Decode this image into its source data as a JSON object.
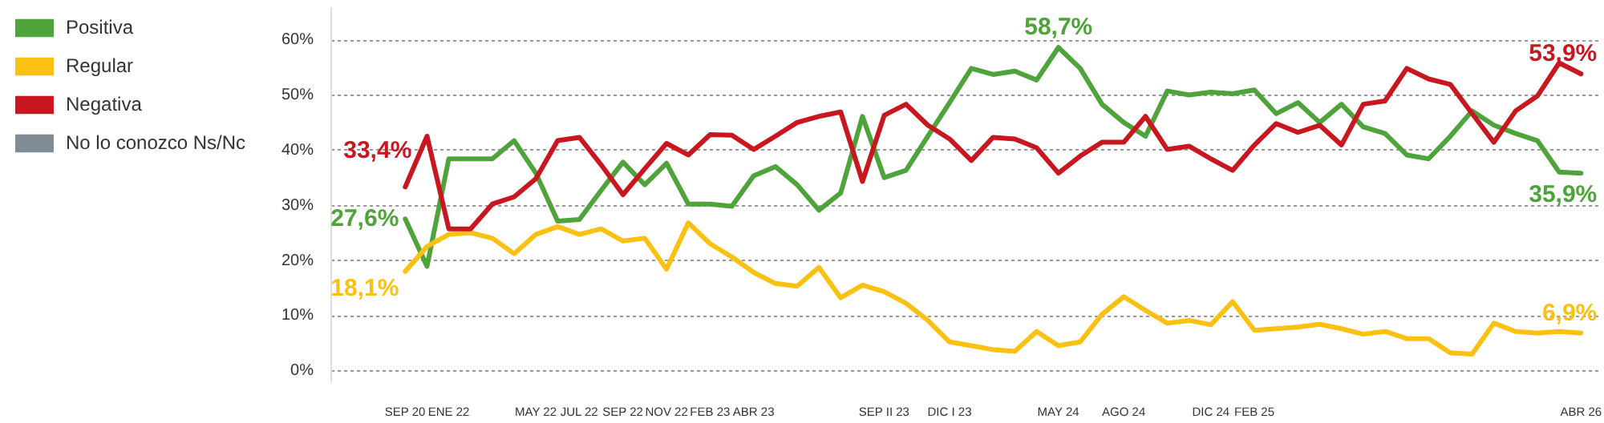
{
  "chart_data": {
    "type": "line",
    "categories": [
      "SEP 20",
      null,
      "ENE 22",
      null,
      null,
      null,
      "MAY 22",
      null,
      "JUL 22",
      null,
      "SEP 22",
      null,
      "NOV 22",
      null,
      "FEB 23",
      null,
      "ABR 23",
      null,
      null,
      null,
      null,
      null,
      "SEP II 23",
      null,
      null,
      "DIC I 23",
      null,
      null,
      null,
      null,
      "MAY 24",
      null,
      null,
      "AGO 24",
      null,
      null,
      null,
      "DIC 24",
      null,
      "FEB 25",
      null,
      null,
      null,
      null,
      null,
      null,
      null,
      null,
      null,
      null,
      null,
      null,
      null,
      null,
      "ABR 26"
    ],
    "series": [
      {
        "name": "Positiva",
        "color": "#4ea33a",
        "values": [
          27.6,
          19.0,
          38.5,
          38.5,
          38.5,
          41.8,
          35.9,
          27.2,
          27.5,
          32.8,
          37.9,
          33.8,
          37.7,
          30.3,
          30.3,
          29.9,
          35.4,
          37.1,
          33.8,
          29.2,
          32.3,
          46.2,
          35.1,
          36.4,
          42.6,
          48.7,
          54.9,
          53.8,
          54.4,
          52.8,
          58.7,
          54.9,
          48.4,
          45.1,
          42.6,
          50.8,
          50.1,
          50.6,
          50.3,
          51.0,
          46.7,
          48.7,
          45.1,
          48.4,
          44.3,
          43.1,
          39.2,
          38.5,
          42.6,
          47.2,
          44.6,
          43.1,
          41.8,
          36.1,
          35.9
        ],
        "value_labels": [
          "27,6%",
          null,
          null,
          null,
          null,
          null,
          null,
          null,
          null,
          null,
          null,
          null,
          null,
          null,
          null,
          null,
          null,
          null,
          null,
          null,
          null,
          null,
          null,
          null,
          null,
          null,
          null,
          null,
          null,
          null,
          "58,7%",
          null,
          null,
          null,
          null,
          null,
          null,
          null,
          null,
          null,
          null,
          null,
          null,
          null,
          null,
          null,
          null,
          null,
          null,
          null,
          null,
          null,
          null,
          null,
          "35,9%"
        ]
      },
      {
        "name": "Regular",
        "color": "#fbc112",
        "values": [
          18.1,
          22.6,
          24.8,
          25.1,
          24.1,
          21.3,
          24.8,
          26.2,
          24.8,
          25.8,
          23.6,
          24.1,
          18.5,
          26.9,
          23.1,
          20.7,
          17.9,
          15.9,
          15.4,
          18.8,
          13.3,
          15.6,
          14.4,
          12.3,
          9.2,
          5.3,
          4.6,
          3.9,
          3.6,
          7.2,
          4.6,
          5.3,
          10.3,
          13.5,
          11.0,
          8.7,
          9.2,
          8.4,
          12.6,
          7.4,
          7.7,
          8.0,
          8.5,
          7.7,
          6.7,
          7.2,
          5.9,
          5.9,
          3.3,
          3.1,
          8.7,
          7.2,
          6.9,
          7.2,
          6.9
        ],
        "value_labels": [
          "18,1%",
          null,
          null,
          null,
          null,
          null,
          null,
          null,
          null,
          null,
          null,
          null,
          null,
          null,
          null,
          null,
          null,
          null,
          null,
          null,
          null,
          null,
          null,
          null,
          null,
          null,
          null,
          null,
          null,
          null,
          null,
          null,
          null,
          null,
          null,
          null,
          null,
          null,
          null,
          null,
          null,
          null,
          null,
          null,
          null,
          null,
          null,
          null,
          null,
          null,
          null,
          null,
          null,
          null,
          "6,9%"
        ]
      },
      {
        "name": "Negativa",
        "color": "#c8171e",
        "values": [
          33.4,
          42.6,
          25.8,
          25.8,
          30.3,
          31.6,
          34.9,
          41.8,
          42.4,
          37.4,
          32.0,
          36.7,
          41.3,
          39.2,
          42.9,
          42.8,
          40.2,
          42.6,
          45.1,
          46.2,
          47.0,
          34.4,
          46.4,
          48.4,
          44.6,
          42.1,
          38.2,
          42.4,
          42.1,
          40.5,
          35.9,
          39.0,
          41.5,
          41.5,
          46.2,
          40.2,
          40.8,
          38.5,
          36.4,
          41.0,
          44.9,
          43.3,
          44.6,
          41.0,
          48.4,
          49.0,
          54.9,
          53.0,
          52.0,
          46.7,
          41.5,
          47.2,
          49.9,
          55.9,
          53.9
        ],
        "value_labels": [
          "33,4%",
          null,
          null,
          null,
          null,
          null,
          null,
          null,
          null,
          null,
          null,
          null,
          null,
          null,
          null,
          null,
          null,
          null,
          null,
          null,
          null,
          null,
          null,
          null,
          null,
          null,
          null,
          null,
          null,
          null,
          null,
          null,
          null,
          null,
          null,
          null,
          null,
          null,
          null,
          null,
          null,
          null,
          null,
          null,
          null,
          null,
          null,
          null,
          null,
          null,
          null,
          null,
          null,
          null,
          "53,9%"
        ]
      },
      {
        "name": "No lo conozco Ns/Nc",
        "color": "#7f8c95",
        "values": [
          null,
          null,
          null,
          null,
          null,
          null,
          null,
          null,
          null,
          null,
          null,
          null,
          null,
          null,
          null,
          null,
          null,
          null,
          null,
          null,
          null,
          null,
          null,
          null,
          null,
          null,
          null,
          null,
          null,
          null,
          null,
          null,
          null,
          null,
          null,
          null,
          null,
          null,
          null,
          null,
          null,
          null,
          null,
          null,
          null,
          null,
          null,
          null,
          null,
          null,
          null,
          null,
          null,
          null,
          null
        ]
      }
    ],
    "ylim": [
      -2,
      66
    ],
    "yticks": [
      {
        "value": 0,
        "label": "0%"
      },
      {
        "value": 10,
        "label": "10%"
      },
      {
        "value": 20,
        "label": "20%"
      },
      {
        "value": 30,
        "label": "30%"
      },
      {
        "value": 40,
        "label": "40%"
      },
      {
        "value": 50,
        "label": "50%"
      },
      {
        "value": 60,
        "label": "60%"
      }
    ],
    "grid": "y",
    "legend": "left",
    "marker": "none",
    "line_style": "solid"
  }
}
